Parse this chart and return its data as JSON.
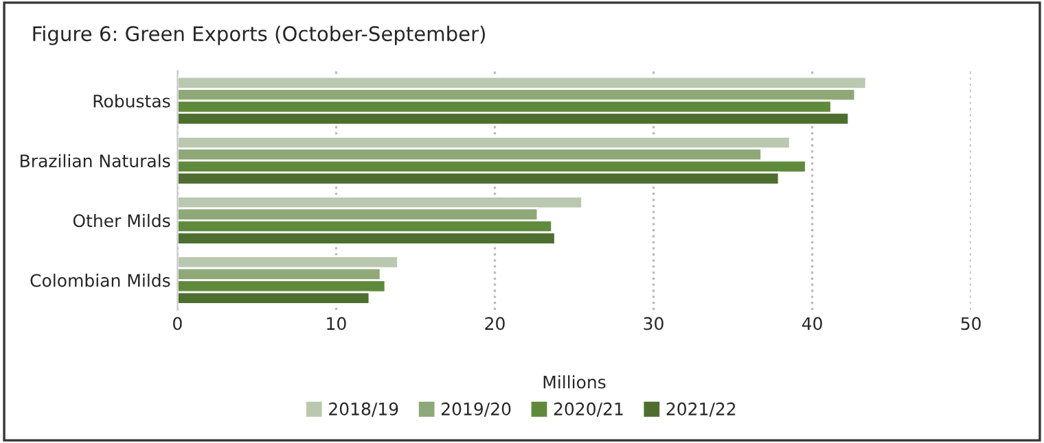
{
  "chart_data": {
    "type": "bar",
    "orientation": "horizontal",
    "title": "Figure 6: Green Exports (October-September)",
    "xlabel": "Millions",
    "categories": [
      "Robustas",
      "Brazilian Naturals",
      "Other Milds",
      "Colombian Milds"
    ],
    "series": [
      {
        "name": "2018/19",
        "color": "#bac8b0",
        "values": [
          43.4,
          38.6,
          25.5,
          13.9
        ]
      },
      {
        "name": "2019/20",
        "color": "#8fa878",
        "values": [
          42.7,
          36.8,
          22.7,
          12.8
        ]
      },
      {
        "name": "2020/21",
        "color": "#5f8a3c",
        "values": [
          41.2,
          39.6,
          23.6,
          13.1
        ]
      },
      {
        "name": "2021/22",
        "color": "#4e6e30",
        "values": [
          42.3,
          37.9,
          23.8,
          12.1
        ]
      }
    ],
    "xlim": [
      0,
      50
    ],
    "xticks": [
      0,
      10,
      20,
      30,
      40,
      50
    ],
    "grid": "x",
    "legend": "bottom"
  }
}
